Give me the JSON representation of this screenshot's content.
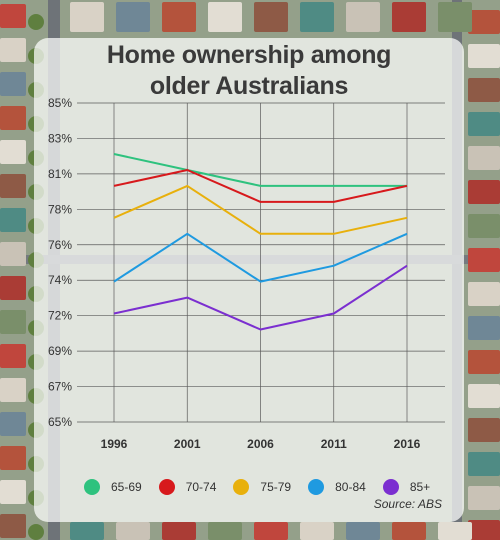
{
  "title_lines": [
    "Home ownership among",
    "older Australians"
  ],
  "source": "Source: ABS",
  "colors": {
    "65-69": "#2ec27e",
    "70-74": "#d7191c",
    "75-79": "#e8b00c",
    "80-84": "#1f9ae0",
    "85+": "#7b2fd0"
  },
  "chart_data": {
    "type": "line",
    "title": "Home ownership among older Australians",
    "xlabel": "",
    "ylabel": "",
    "x": [
      "1996",
      "2001",
      "2006",
      "2011",
      "2016"
    ],
    "y_ticks": [
      "85%",
      "83%",
      "81%",
      "78%",
      "76%",
      "74%",
      "72%",
      "69%",
      "67%",
      "65%"
    ],
    "ylim": [
      65,
      85
    ],
    "grid": true,
    "legend_position": "bottom",
    "series": [
      {
        "name": "65-69",
        "values": [
          81.8,
          80.8,
          79.8,
          79.8,
          79.8
        ]
      },
      {
        "name": "70-74",
        "values": [
          79.8,
          80.8,
          78.8,
          78.8,
          79.8
        ]
      },
      {
        "name": "75-79",
        "values": [
          77.8,
          79.8,
          76.8,
          76.8,
          77.8
        ]
      },
      {
        "name": "80-84",
        "values": [
          73.8,
          76.8,
          73.8,
          74.8,
          76.8
        ]
      },
      {
        "name": "85+",
        "values": [
          71.8,
          72.8,
          70.8,
          71.8,
          74.8
        ]
      }
    ]
  }
}
